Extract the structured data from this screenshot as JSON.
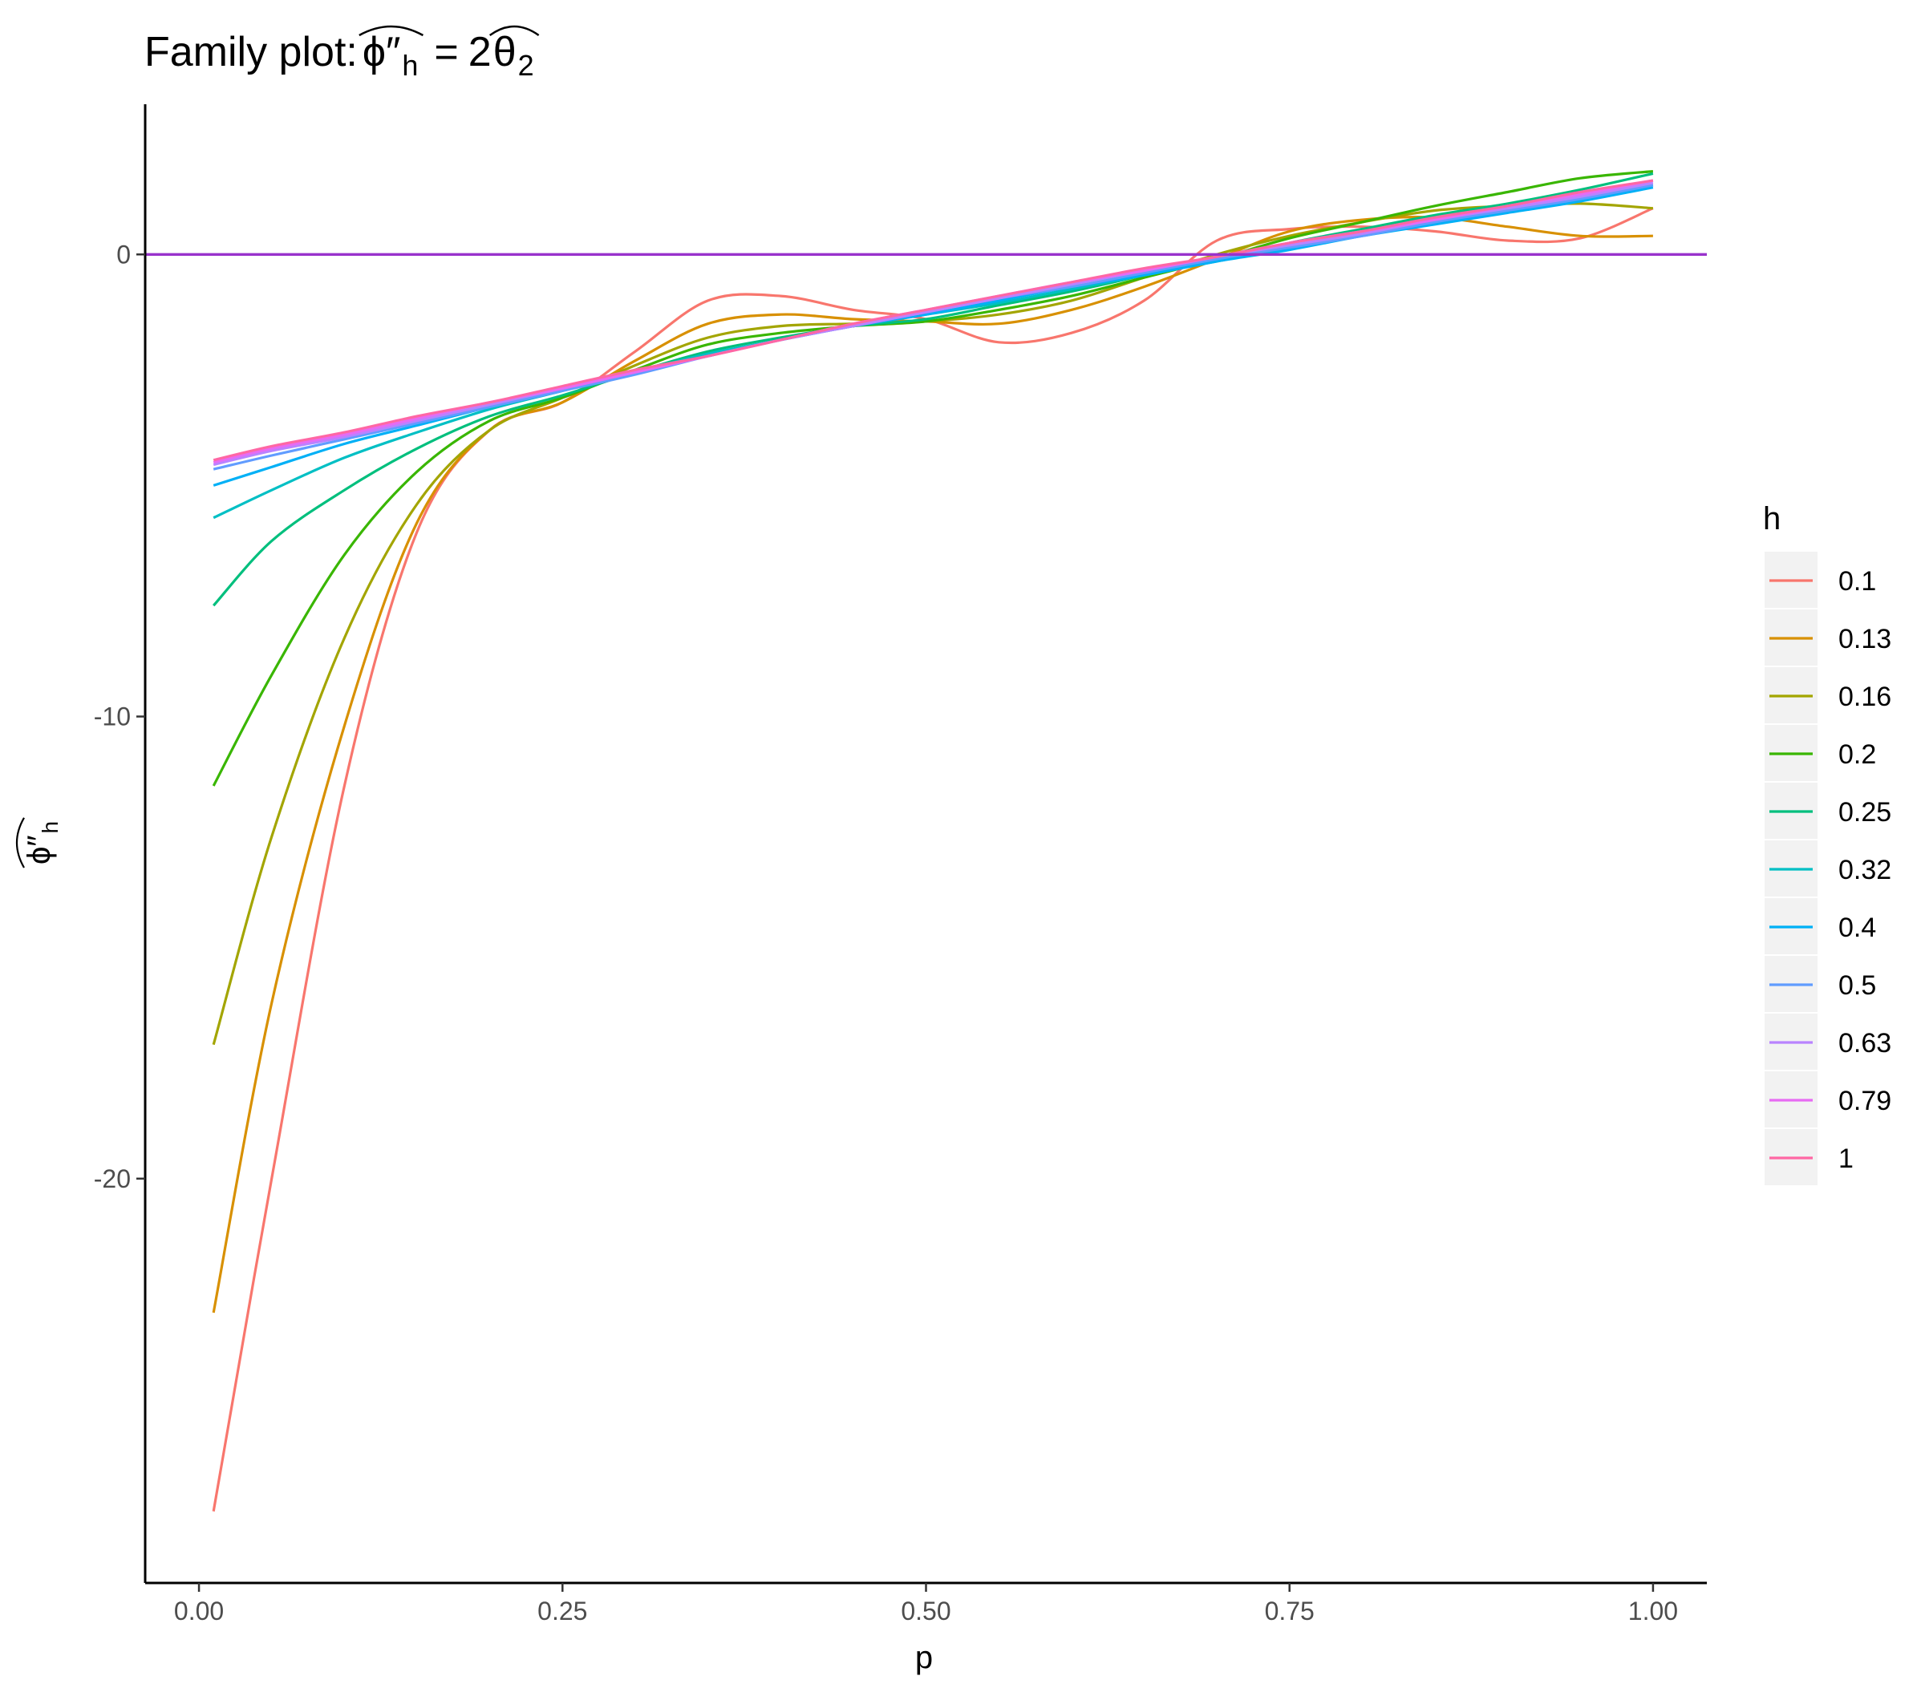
{
  "chart_data": {
    "type": "line",
    "title": "Family plot: ",
    "title_math": {
      "lhs_main": "ϕ″",
      "lhs_sub": "h",
      "equals": "=",
      "rhs_coef": "2",
      "rhs_main": "θ",
      "rhs_sub": "2"
    },
    "xlabel": "p",
    "ylabel_math": {
      "main": "ϕ″",
      "sub": "h"
    },
    "xlim": [
      -0.037,
      1.037
    ],
    "ylim": [
      -28.75,
      3.25
    ],
    "x_ticks": [
      {
        "value": 0.0,
        "label": "0.00"
      },
      {
        "value": 0.25,
        "label": "0.25"
      },
      {
        "value": 0.5,
        "label": "0.50"
      },
      {
        "value": 0.75,
        "label": "0.75"
      },
      {
        "value": 1.0,
        "label": "1.00"
      }
    ],
    "y_ticks": [
      {
        "value": 0,
        "label": "0"
      },
      {
        "value": -10,
        "label": "-10"
      },
      {
        "value": -20,
        "label": "-20"
      }
    ],
    "hline": {
      "y": 0,
      "color": "#9932CC"
    },
    "grid": false,
    "legend": {
      "title": "h",
      "position": "right"
    },
    "x": [
      0.01,
      0.05,
      0.1,
      0.15,
      0.2,
      0.25,
      0.3,
      0.35,
      0.4,
      0.45,
      0.5,
      0.55,
      0.6,
      0.65,
      0.7,
      0.75,
      0.8,
      0.85,
      0.9,
      0.95,
      1.0
    ],
    "series": [
      {
        "name": "0.1",
        "color": "#F8766D",
        "values": [
          -27.2,
          -20.0,
          -11.5,
          -6.0,
          -3.8,
          -3.2,
          -2.1,
          -1.0,
          -0.9,
          -1.2,
          -1.4,
          -1.9,
          -1.7,
          -1.0,
          0.3,
          0.55,
          0.6,
          0.5,
          0.3,
          0.35,
          1.0
        ]
      },
      {
        "name": "0.13",
        "color": "#D89000",
        "values": [
          -22.9,
          -16.2,
          -10.2,
          -5.8,
          -3.8,
          -3.2,
          -2.3,
          -1.5,
          -1.3,
          -1.4,
          -1.45,
          -1.5,
          -1.2,
          -0.7,
          -0.1,
          0.5,
          0.75,
          0.8,
          0.6,
          0.4,
          0.4
        ]
      },
      {
        "name": "0.16",
        "color": "#A3A500",
        "values": [
          -17.1,
          -12.6,
          -8.3,
          -5.4,
          -3.8,
          -3.1,
          -2.4,
          -1.8,
          -1.55,
          -1.5,
          -1.45,
          -1.3,
          -1.0,
          -0.5,
          0.0,
          0.4,
          0.7,
          0.95,
          1.05,
          1.1,
          1.0
        ]
      },
      {
        "name": "0.2",
        "color": "#39B600",
        "values": [
          -11.5,
          -9.1,
          -6.5,
          -4.7,
          -3.6,
          -3.1,
          -2.5,
          -1.95,
          -1.7,
          -1.55,
          -1.45,
          -1.2,
          -0.9,
          -0.5,
          -0.1,
          0.35,
          0.7,
          1.05,
          1.35,
          1.65,
          1.8
        ]
      },
      {
        "name": "0.25",
        "color": "#00BF7D",
        "values": [
          -7.6,
          -6.2,
          -5.1,
          -4.2,
          -3.5,
          -3.05,
          -2.55,
          -2.1,
          -1.8,
          -1.55,
          -1.4,
          -1.1,
          -0.8,
          -0.45,
          -0.1,
          0.25,
          0.55,
          0.85,
          1.1,
          1.4,
          1.75
        ]
      },
      {
        "name": "0.32",
        "color": "#00BFC4",
        "values": [
          -5.7,
          -5.1,
          -4.4,
          -3.85,
          -3.35,
          -2.95,
          -2.55,
          -2.15,
          -1.85,
          -1.55,
          -1.3,
          -1.05,
          -0.75,
          -0.45,
          -0.15,
          0.15,
          0.45,
          0.7,
          0.95,
          1.2,
          1.5
        ]
      },
      {
        "name": "0.4",
        "color": "#00B0F6",
        "values": [
          -5.0,
          -4.6,
          -4.1,
          -3.7,
          -3.3,
          -2.95,
          -2.55,
          -2.2,
          -1.85,
          -1.55,
          -1.3,
          -1.0,
          -0.7,
          -0.45,
          -0.15,
          0.1,
          0.4,
          0.65,
          0.9,
          1.15,
          1.45
        ]
      },
      {
        "name": "0.5",
        "color": "#619CFF",
        "values": [
          -4.65,
          -4.35,
          -4.0,
          -3.65,
          -3.3,
          -2.95,
          -2.6,
          -2.2,
          -1.85,
          -1.55,
          -1.25,
          -0.95,
          -0.7,
          -0.4,
          -0.1,
          0.15,
          0.4,
          0.7,
          0.95,
          1.2,
          1.5
        ]
      },
      {
        "name": "0.63",
        "color": "#B983FF",
        "values": [
          -4.55,
          -4.25,
          -3.95,
          -3.6,
          -3.25,
          -2.9,
          -2.55,
          -2.2,
          -1.85,
          -1.55,
          -1.25,
          -0.95,
          -0.65,
          -0.35,
          -0.05,
          0.2,
          0.45,
          0.75,
          1.0,
          1.25,
          1.55
        ]
      },
      {
        "name": "0.79",
        "color": "#E76BF3",
        "values": [
          -4.5,
          -4.2,
          -3.9,
          -3.55,
          -3.2,
          -2.9,
          -2.55,
          -2.2,
          -1.85,
          -1.5,
          -1.2,
          -0.9,
          -0.6,
          -0.35,
          -0.05,
          0.25,
          0.5,
          0.75,
          1.05,
          1.3,
          1.6
        ]
      },
      {
        "name": "1",
        "color": "#FF67A4",
        "values": [
          -4.45,
          -4.15,
          -3.85,
          -3.5,
          -3.2,
          -2.85,
          -2.5,
          -2.2,
          -1.85,
          -1.5,
          -1.2,
          -0.9,
          -0.6,
          -0.3,
          -0.05,
          0.25,
          0.5,
          0.8,
          1.05,
          1.35,
          1.6
        ]
      }
    ]
  }
}
